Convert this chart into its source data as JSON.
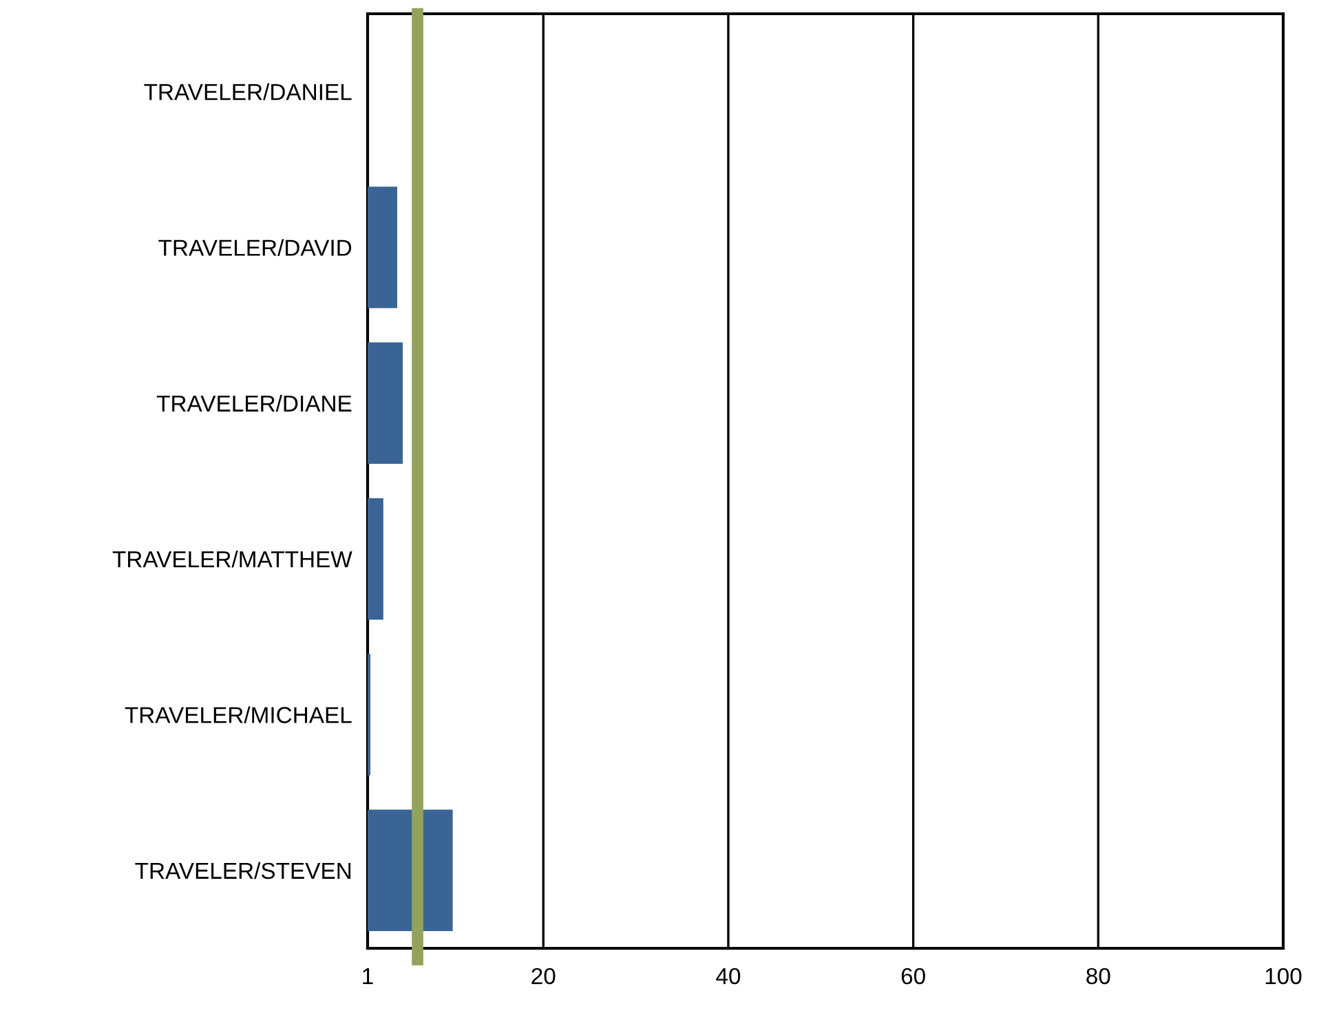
{
  "chart_data": {
    "type": "bar",
    "orientation": "horizontal",
    "categories": [
      "TRAVELER/DANIEL",
      "TRAVELER/DAVID",
      "TRAVELER/DIANE",
      "TRAVELER/MATTHEW",
      "TRAVELER/MICHAEL",
      "TRAVELER/STEVEN"
    ],
    "series": [
      {
        "color": "#3a6496",
        "values": [
          null,
          4.2,
          4.8,
          2.7,
          1.3,
          10.2
        ]
      }
    ],
    "xlim": [
      1,
      100
    ],
    "xticks": [
      1,
      20,
      40,
      60,
      80,
      100
    ],
    "grid": "x",
    "ref_lines": [
      {
        "axis": "x",
        "value": 6.4,
        "color": "#94a35c"
      }
    ]
  }
}
